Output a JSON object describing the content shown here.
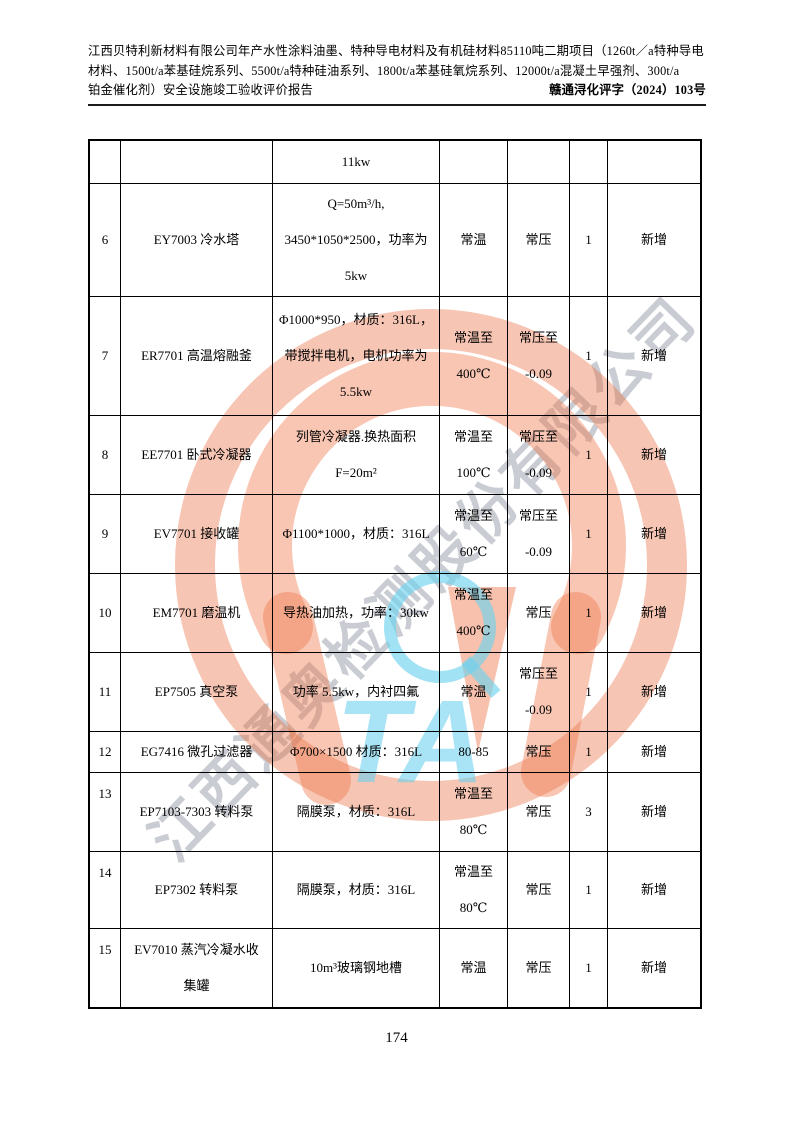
{
  "header": {
    "title_line1": "江西贝特利新材料有限公司年产水性涂料油墨、特种导电材料及有机硅材料85110吨二期项目（1260t／a特种导电",
    "title_line2": "材料、1500t/a苯基硅烷系列、5500t/a特种硅油系列、1800t/a苯基硅氧烷系列、12000t/a混凝土早强剂、300t/a",
    "title_line3": "铂金催化剂）安全设施竣工验收评价报告",
    "doc_number": "赣通浔化评字（2024）103号"
  },
  "table": {
    "rows": [
      {
        "no": "",
        "name": [
          ""
        ],
        "spec": [
          "11kw"
        ],
        "temp": [
          ""
        ],
        "pressure": [
          ""
        ],
        "qty": "",
        "remark": ""
      },
      {
        "no": "6",
        "name": [
          "EY7003 冷水塔"
        ],
        "spec": [
          "Q=50m³/h,",
          "3450*1050*2500，功率为",
          "5kw"
        ],
        "temp": [
          "常温"
        ],
        "pressure": [
          "常压"
        ],
        "qty": "1",
        "remark": "新增"
      },
      {
        "no": "7",
        "name": [
          "ER7701 高温熔融釜"
        ],
        "spec": [
          "Φ1000*950，材质：316L，",
          "带搅拌电机，电机功率为",
          "5.5kw"
        ],
        "temp": [
          "常温至",
          "400℃"
        ],
        "pressure": [
          "常压至",
          "-0.09"
        ],
        "qty": "1",
        "remark": "新增"
      },
      {
        "no": "8",
        "name": [
          "EE7701 卧式冷凝器"
        ],
        "spec": [
          "列管冷凝器.换热面积",
          "F=20m²"
        ],
        "temp": [
          "常温至",
          "100℃"
        ],
        "pressure": [
          "常压至",
          "-0.09"
        ],
        "qty": "1",
        "remark": "新增"
      },
      {
        "no": "9",
        "name": [
          "EV7701 接收罐"
        ],
        "spec": [
          "Φ1100*1000，材质：316L"
        ],
        "temp": [
          "常温至",
          "60℃"
        ],
        "pressure": [
          "常压至",
          "-0.09"
        ],
        "qty": "1",
        "remark": "新增"
      },
      {
        "no": "10",
        "name": [
          "EM7701 磨温机"
        ],
        "spec": [
          "导热油加热，功率：30kw"
        ],
        "temp": [
          "常温至",
          "400℃"
        ],
        "pressure": [
          "常压"
        ],
        "qty": "1",
        "remark": "新增"
      },
      {
        "no": "11",
        "name": [
          "EP7505 真空泵"
        ],
        "spec": [
          "功率 5.5kw，内衬四氟"
        ],
        "temp": [
          "常温"
        ],
        "pressure": [
          "常压至",
          "-0.09"
        ],
        "qty": "1",
        "remark": "新增"
      },
      {
        "no": "12",
        "name": [
          "EG7416 微孔过滤器"
        ],
        "spec": [
          "Φ700×1500 材质：316L"
        ],
        "temp": [
          "80-85"
        ],
        "pressure": [
          "常压"
        ],
        "qty": "1",
        "remark": "新增"
      },
      {
        "no": "13",
        "name": [
          "EP7103-7303 转料泵"
        ],
        "spec": [
          "隔膜泵，材质：316L"
        ],
        "temp": [
          "常温至",
          "80℃"
        ],
        "pressure": [
          "常压"
        ],
        "qty": "3",
        "remark": "新增"
      },
      {
        "no": "14",
        "name": [
          "EP7302 转料泵"
        ],
        "spec": [
          "隔膜泵，材质：316L"
        ],
        "temp": [
          "常温至",
          "80℃"
        ],
        "pressure": [
          "常压"
        ],
        "qty": "1",
        "remark": "新增"
      },
      {
        "no": "15",
        "name": [
          "EV7010 蒸汽冷凝水收",
          "集罐"
        ],
        "spec": [
          "10m³玻璃钢地槽"
        ],
        "temp": [
          "常温"
        ],
        "pressure": [
          "常压"
        ],
        "qty": "1",
        "remark": "新增"
      }
    ]
  },
  "watermark": {
    "company_text": "江西通奥检测股份有限公司",
    "logo_letters": "TA",
    "ring_color": "#ec6e42",
    "accent_cyan": "#6ed2ee",
    "text_gray": "#9499a5"
  },
  "footer": {
    "page_number": "174"
  }
}
